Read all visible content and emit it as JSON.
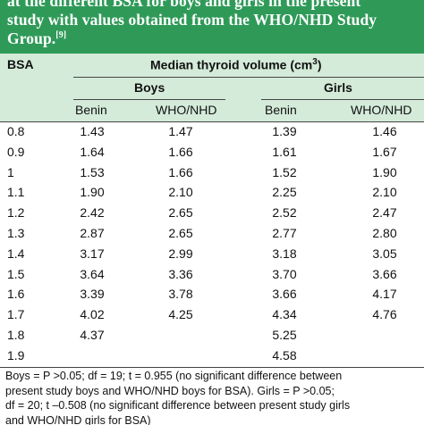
{
  "header": {
    "title_lines": [
      "at the different BSA for boys and girls in the present",
      "study with values obtained from the WHO/NHD Study",
      "Group."
    ],
    "reference": "[9]"
  },
  "table": {
    "header": {
      "bsa": "BSA",
      "group": "Median thyroid volume (cm",
      "group_exponent": "3",
      "group_close": ")",
      "boys": "Boys",
      "girls": "Girls",
      "columns": [
        "Benin",
        "WHO/NHD",
        "Benin",
        "WHO/NHD"
      ]
    },
    "rows": [
      [
        "0.8",
        "1.43",
        "1.47",
        "1.39",
        "1.46"
      ],
      [
        "0.9",
        "1.64",
        "1.66",
        "1.61",
        "1.67"
      ],
      [
        "1",
        "1.53",
        "1.66",
        "1.52",
        "1.90"
      ],
      [
        "1.1",
        "1.90",
        "2.10",
        "2.25",
        "2.10"
      ],
      [
        "1.2",
        "2.42",
        "2.65",
        "2.52",
        "2.47"
      ],
      [
        "1.3",
        "2.87",
        "2.65",
        "2.77",
        "2.80"
      ],
      [
        "1.4",
        "3.17",
        "2.99",
        "3.18",
        "3.05"
      ],
      [
        "1.5",
        "3.64",
        "3.36",
        "3.70",
        "3.66"
      ],
      [
        "1.6",
        "3.39",
        "3.78",
        "3.66",
        "4.17"
      ],
      [
        "1.7",
        "4.02",
        "4.25",
        "4.34",
        "4.76"
      ],
      [
        "1.8",
        "4.37",
        null,
        "5.25",
        null
      ],
      [
        "1.9",
        null,
        null,
        "4.58",
        null
      ]
    ]
  },
  "footnote": [
    "Boys = P >0.05; df = 19; t = 0.955 (no significant difference between",
    "present study boys and WHO/NHD boys for BSA). Girls = P >0.05;",
    "df = 20; t –0.508 (no significant difference between present study girls",
    "and WHO/NHD girls for BSA)"
  ]
}
